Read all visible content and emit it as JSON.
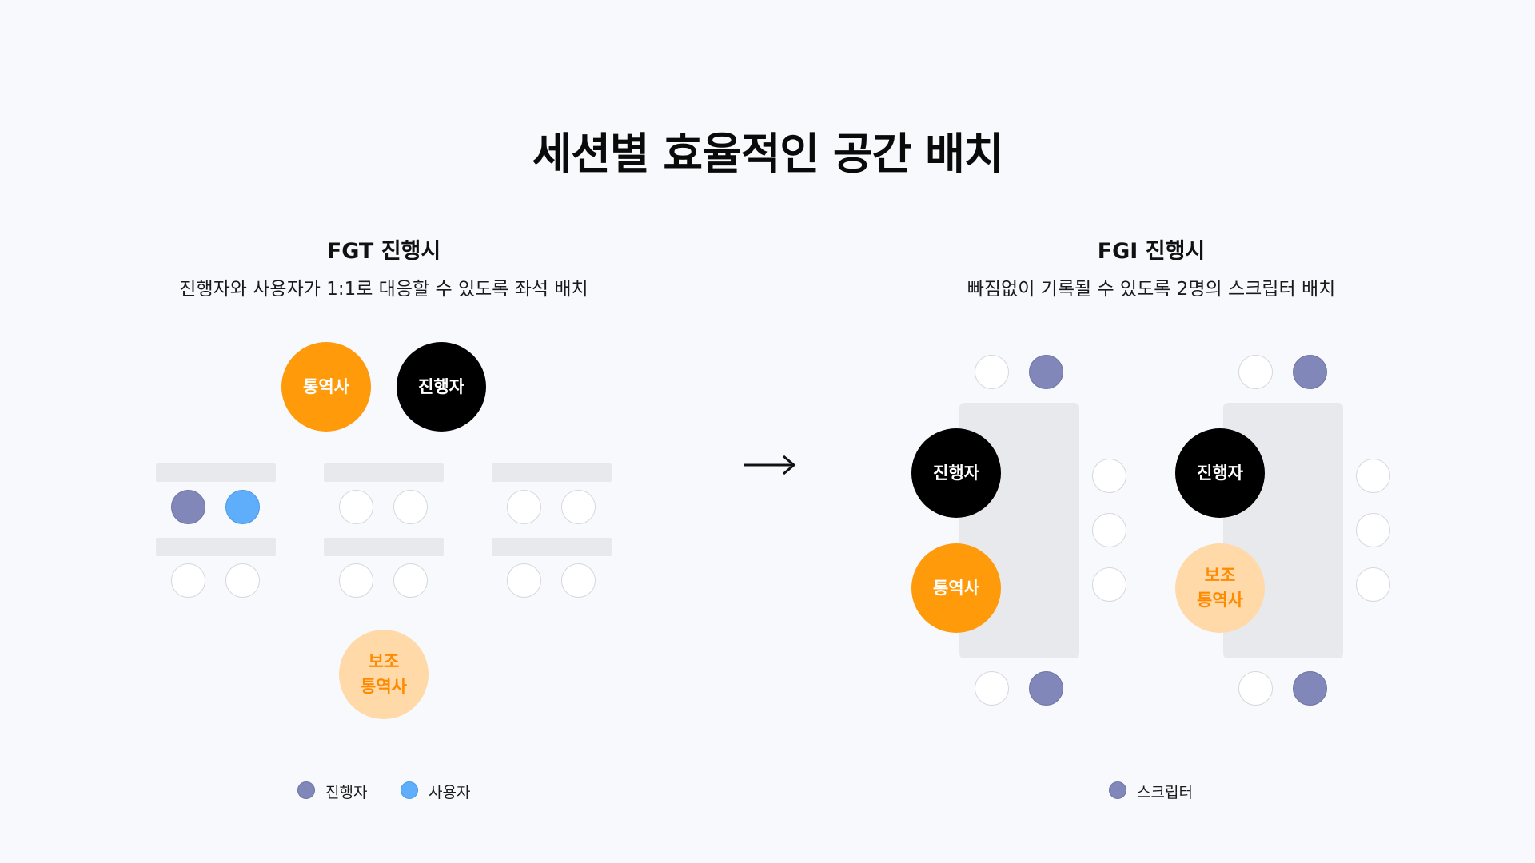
{
  "title": "세션별 효율적인 공간 배치",
  "fgt": {
    "heading": "FGT 진행시",
    "description": "진행자와 사용자가 1:1로 대응할 수 있도록 좌석 배치",
    "roles": {
      "interpreter": "통역사",
      "moderator": "진행자",
      "assistant_interpreter": "보조\n통역사"
    },
    "legend": [
      {
        "label": "진행자",
        "color": "#8187b8"
      },
      {
        "label": "사용자",
        "color": "#5eaefb"
      }
    ]
  },
  "fgi": {
    "heading": "FGI 진행시",
    "description": "빠짐없이 기록될 수 있도록 2명의 스크립터 배치",
    "roles": {
      "moderator": "진행자",
      "interpreter": "통역사",
      "assistant_interpreter": "보조\n통역사"
    },
    "legend": [
      {
        "label": "스크립터",
        "color": "#8187b8"
      }
    ]
  },
  "colors": {
    "orange": "#ff9a0b",
    "light_orange": "#ffd9a8",
    "moderator_seat": "#8187b8",
    "user_seat": "#5eaefb"
  }
}
